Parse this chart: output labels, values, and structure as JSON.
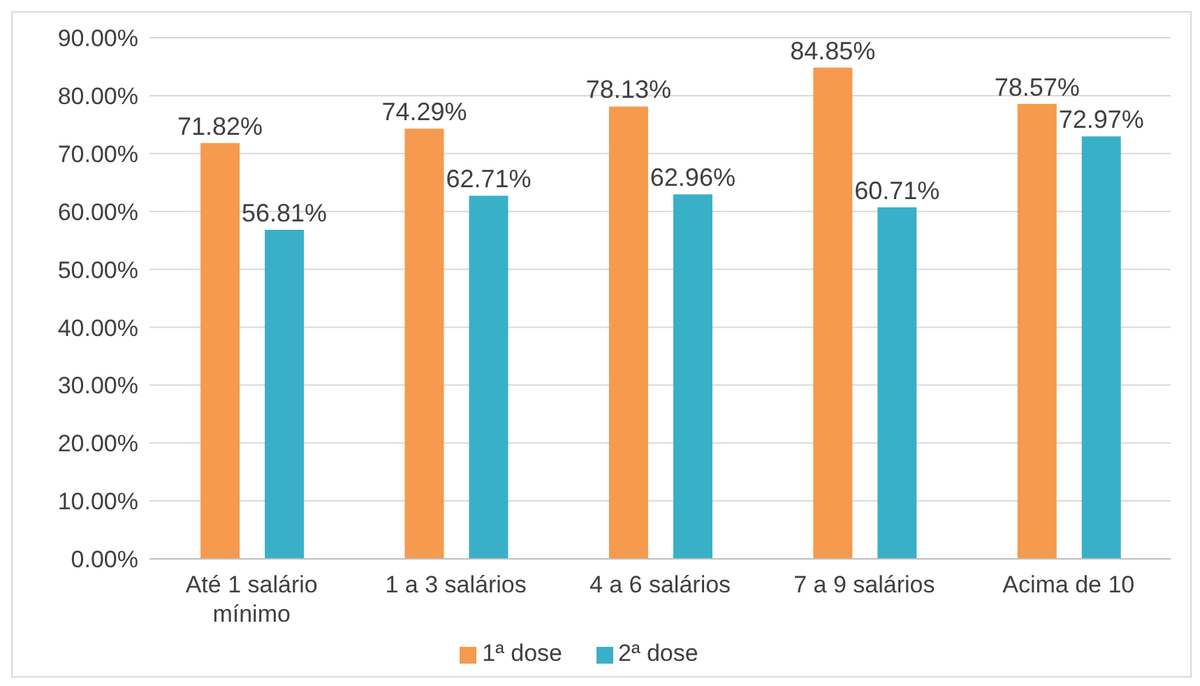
{
  "chart_data": {
    "type": "bar",
    "categories": [
      "Até 1 salário mínimo",
      "1 a 3 salários",
      "4 a 6 salários",
      "7 a 9 salários",
      "Acima de 10"
    ],
    "series": [
      {
        "name": "1ª dose",
        "color": "#f59a4e",
        "values": [
          71.82,
          74.29,
          78.13,
          84.85,
          78.57
        ],
        "value_labels": [
          "71.82%",
          "74.29%",
          "78.13%",
          "84.85%",
          "78.57%"
        ]
      },
      {
        "name": "2ª dose",
        "color": "#3aafc8",
        "values": [
          56.81,
          62.71,
          62.96,
          60.71,
          72.97
        ],
        "value_labels": [
          "56.81%",
          "62.71%",
          "62.96%",
          "60.71%",
          "72.97%"
        ]
      }
    ],
    "ylim": [
      0,
      90
    ],
    "yticks": [
      {
        "value": 0,
        "label": "0.00%"
      },
      {
        "value": 10,
        "label": "10.00%"
      },
      {
        "value": 20,
        "label": "20.00%"
      },
      {
        "value": 30,
        "label": "30.00%"
      },
      {
        "value": 40,
        "label": "40.00%"
      },
      {
        "value": 50,
        "label": "50.00%"
      },
      {
        "value": 60,
        "label": "60.00%"
      },
      {
        "value": 70,
        "label": "70.00%"
      },
      {
        "value": 80,
        "label": "80.00%"
      },
      {
        "value": 90,
        "label": "90.00%"
      }
    ],
    "grid": "y",
    "legend": "bottom"
  }
}
